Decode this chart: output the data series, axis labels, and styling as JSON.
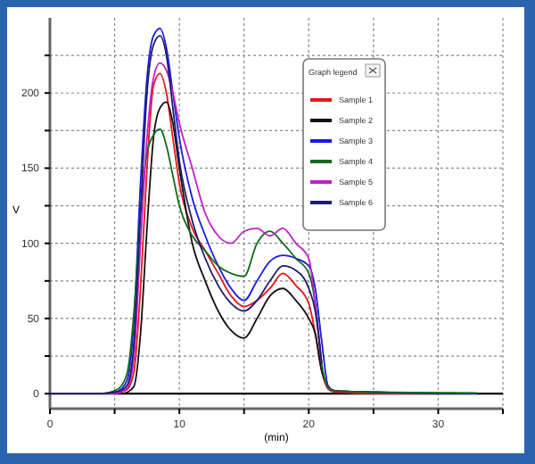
{
  "chart_data": {
    "type": "line",
    "xlabel": "(min)",
    "ylabel": "V",
    "legend_title": "Graph legend",
    "x": [
      0,
      4,
      5,
      5.5,
      6,
      6.5,
      7,
      7.5,
      8,
      8.5,
      9,
      9.5,
      10,
      11,
      12,
      13,
      14,
      15,
      16,
      17,
      18,
      19,
      20,
      20.5,
      21,
      21.5,
      22,
      25,
      33
    ],
    "series": [
      {
        "name": "Sample 1",
        "color": "#e8141c",
        "values": [
          null,
          null,
          0,
          1,
          3,
          15,
          70,
          150,
          205,
          213,
          200,
          170,
          140,
          110,
          95,
          80,
          65,
          58,
          62,
          70,
          80,
          72,
          60,
          40,
          15,
          3,
          1,
          0,
          0
        ]
      },
      {
        "name": "Sample 2",
        "color": "#111111",
        "values": [
          0,
          0,
          0,
          0,
          1,
          5,
          40,
          110,
          170,
          190,
          194,
          180,
          150,
          100,
          75,
          55,
          42,
          37,
          50,
          65,
          70,
          62,
          50,
          40,
          15,
          5,
          2,
          1,
          0
        ]
      },
      {
        "name": "Sample 3",
        "color": "#1a1ae0",
        "values": [
          0,
          0,
          1,
          3,
          10,
          50,
          140,
          210,
          238,
          243,
          230,
          200,
          170,
          130,
          105,
          85,
          70,
          62,
          75,
          88,
          92,
          90,
          85,
          70,
          35,
          5,
          2,
          1,
          0
        ]
      },
      {
        "name": "Sample 4",
        "color": "#0f6b1e",
        "values": [
          0,
          0,
          2,
          5,
          15,
          55,
          120,
          160,
          172,
          176,
          165,
          145,
          125,
          105,
          95,
          85,
          80,
          78,
          100,
          108,
          100,
          90,
          80,
          60,
          20,
          4,
          2,
          1,
          0.5
        ]
      },
      {
        "name": "Sample 5",
        "color": "#c21fc8",
        "values": [
          0,
          0,
          0,
          1,
          4,
          25,
          100,
          170,
          210,
          220,
          215,
          200,
          180,
          150,
          120,
          105,
          100,
          108,
          110,
          105,
          110,
          100,
          90,
          60,
          20,
          null,
          null,
          null,
          null
        ]
      },
      {
        "name": "Sample 6",
        "color": "#1c1c6e",
        "values": [
          0,
          0,
          1,
          2,
          6,
          35,
          120,
          200,
          232,
          238,
          225,
          190,
          155,
          115,
          90,
          72,
          60,
          55,
          62,
          75,
          85,
          82,
          70,
          55,
          20,
          null,
          null,
          null,
          null
        ]
      }
    ],
    "xlim": [
      0,
      35
    ],
    "xticks": [
      0,
      {
        "value": 5,
        "label": null
      },
      10,
      {
        "value": 15,
        "label": null
      },
      20,
      {
        "value": 25,
        "label": null
      },
      30,
      {
        "value": 35,
        "label": null
      }
    ],
    "ylim": [
      -10,
      250
    ],
    "yticks": [
      0,
      {
        "value": 25,
        "label": null
      },
      50,
      {
        "value": 75,
        "label": null
      },
      100,
      {
        "value": 125,
        "label": null
      },
      150,
      {
        "value": 175,
        "label": null
      },
      200,
      {
        "value": 225,
        "label": null
      }
    ],
    "ref_lines": [
      {
        "axis": "y",
        "value": 0,
        "color": "#000000"
      }
    ],
    "grid": true,
    "legend": "top right",
    "marker": "none",
    "line_style": "solid"
  }
}
